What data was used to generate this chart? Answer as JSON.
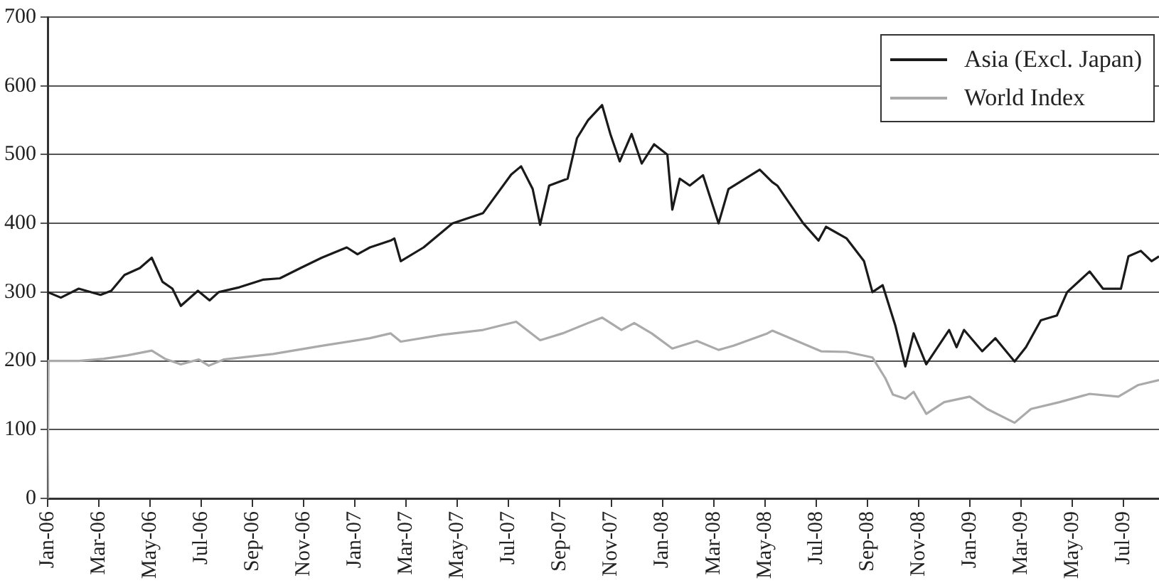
{
  "chart_data": {
    "type": "line",
    "xlim": [
      "2006-01-01",
      "2009-08-13"
    ],
    "xticks": [
      {
        "value": "2006-01-01",
        "label": "Jan-06"
      },
      {
        "value": "2006-03-01",
        "label": "Mar-06"
      },
      {
        "value": "2006-05-01",
        "label": "May-06"
      },
      {
        "value": "2006-07-01",
        "label": "Jul-06"
      },
      {
        "value": "2006-09-01",
        "label": "Sep-06"
      },
      {
        "value": "2006-11-01",
        "label": "Nov-06"
      },
      {
        "value": "2007-01-01",
        "label": "Jan-07"
      },
      {
        "value": "2007-03-01",
        "label": "Mar-07"
      },
      {
        "value": "2007-05-01",
        "label": "May-07"
      },
      {
        "value": "2007-07-01",
        "label": "Jul-07"
      },
      {
        "value": "2007-09-01",
        "label": "Sep-07"
      },
      {
        "value": "2007-11-01",
        "label": "Nov-07"
      },
      {
        "value": "2008-01-01",
        "label": "Jan-08"
      },
      {
        "value": "2008-03-01",
        "label": "Mar-08"
      },
      {
        "value": "2008-05-01",
        "label": "May-08"
      },
      {
        "value": "2008-07-01",
        "label": "Jul-08"
      },
      {
        "value": "2008-09-01",
        "label": "Sep-08"
      },
      {
        "value": "2008-11-01",
        "label": "Nov-08"
      },
      {
        "value": "2009-01-01",
        "label": "Jan-09"
      },
      {
        "value": "2009-03-01",
        "label": "Mar-09"
      },
      {
        "value": "2009-05-01",
        "label": "May-09"
      },
      {
        "value": "2009-07-01",
        "label": "Jul-09"
      }
    ],
    "ylim": [
      0,
      700
    ],
    "yticks": [
      0,
      100,
      200,
      300,
      400,
      500,
      600,
      700
    ],
    "grid": "y",
    "legend": "top right",
    "marker": "none",
    "line_style": "solid",
    "series": [
      {
        "name": "Asia (Excl. Japan)",
        "color": "#1a1a1a",
        "x": [
          "2006-01-01",
          "2006-01-17",
          "2006-02-07",
          "2006-03-03",
          "2006-03-16",
          "2006-04-01",
          "2006-04-19",
          "2006-05-03",
          "2006-05-16",
          "2006-05-28",
          "2006-06-07",
          "2006-06-27",
          "2006-07-11",
          "2006-07-22",
          "2006-08-16",
          "2006-09-13",
          "2006-10-03",
          "2006-10-28",
          "2006-11-22",
          "2006-12-22",
          "2007-01-04",
          "2007-01-19",
          "2007-02-12",
          "2007-02-16",
          "2007-02-23",
          "2007-03-22",
          "2007-04-25",
          "2007-06-01",
          "2007-07-04",
          "2007-07-16",
          "2007-07-30",
          "2007-08-08",
          "2007-08-19",
          "2007-09-10",
          "2007-09-21",
          "2007-10-04",
          "2007-10-21",
          "2007-10-31",
          "2007-11-11",
          "2007-11-25",
          "2007-12-07",
          "2007-12-22",
          "2008-01-07",
          "2008-01-13",
          "2008-01-22",
          "2008-02-03",
          "2008-02-18",
          "2008-03-07",
          "2008-03-19",
          "2008-04-25",
          "2008-05-10",
          "2008-05-16",
          "2008-06-16",
          "2008-07-04",
          "2008-07-13",
          "2008-08-07",
          "2008-08-28",
          "2008-09-07",
          "2008-09-19",
          "2008-10-04",
          "2008-10-16",
          "2008-10-26",
          "2008-11-10",
          "2008-12-07",
          "2008-12-16",
          "2008-12-25",
          "2009-01-16",
          "2009-02-01",
          "2009-02-22",
          "2009-03-07",
          "2009-03-25",
          "2009-04-13",
          "2009-04-25",
          "2009-05-22",
          "2009-06-07",
          "2009-06-28",
          "2009-07-07",
          "2009-07-22",
          "2009-08-04",
          "2009-08-13"
        ],
        "values": [
          300,
          292,
          305,
          296,
          302,
          325,
          335,
          350,
          315,
          305,
          280,
          302,
          288,
          300,
          307,
          318,
          320,
          335,
          350,
          365,
          355,
          365,
          375,
          378,
          345,
          365,
          400,
          415,
          471,
          483,
          450,
          398,
          455,
          465,
          524,
          550,
          572,
          530,
          490,
          530,
          487,
          515,
          500,
          420,
          465,
          455,
          470,
          400,
          450,
          478,
          460,
          455,
          400,
          375,
          395,
          378,
          345,
          300,
          310,
          251,
          192,
          240,
          195,
          245,
          220,
          245,
          214,
          233,
          199,
          220,
          259,
          266,
          300,
          330,
          305,
          305,
          352,
          360,
          345,
          352
        ]
      },
      {
        "name": "World Index",
        "color": "#aaaaaa",
        "x": [
          "2006-01-01",
          "2006-01-02",
          "2006-02-07",
          "2006-03-07",
          "2006-04-04",
          "2006-05-03",
          "2006-05-19",
          "2006-06-07",
          "2006-06-28",
          "2006-07-10",
          "2006-07-28",
          "2006-09-25",
          "2006-11-22",
          "2007-01-19",
          "2007-02-12",
          "2007-02-23",
          "2007-04-13",
          "2007-06-01",
          "2007-07-10",
          "2007-08-08",
          "2007-09-04",
          "2007-10-04",
          "2007-10-21",
          "2007-11-13",
          "2007-11-28",
          "2007-12-19",
          "2008-01-13",
          "2008-02-11",
          "2008-03-07",
          "2008-03-25",
          "2008-05-04",
          "2008-05-10",
          "2008-07-07",
          "2008-08-07",
          "2008-09-07",
          "2008-09-22",
          "2008-10-01",
          "2008-10-16",
          "2008-10-26",
          "2008-11-10",
          "2008-12-01",
          "2009-01-01",
          "2009-01-22",
          "2009-02-22",
          "2009-03-13",
          "2009-04-16",
          "2009-05-22",
          "2009-06-25",
          "2009-07-19",
          "2009-08-13"
        ],
        "values": [
          0,
          200,
          200,
          203,
          208,
          215,
          203,
          195,
          202,
          193,
          202,
          210,
          222,
          233,
          240,
          228,
          238,
          245,
          257,
          230,
          240,
          255,
          263,
          245,
          255,
          240,
          218,
          229,
          216,
          222,
          240,
          244,
          214,
          213,
          205,
          175,
          151,
          145,
          155,
          123,
          140,
          148,
          130,
          110,
          130,
          140,
          152,
          148,
          165,
          172
        ]
      }
    ]
  }
}
